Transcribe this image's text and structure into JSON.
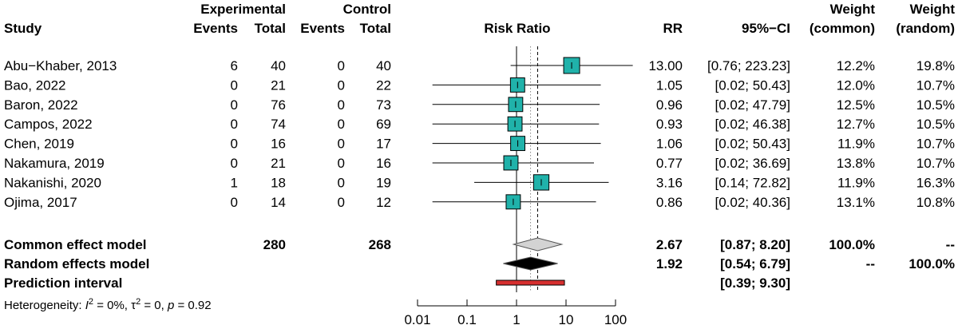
{
  "chart_data": {
    "type": "forest",
    "title": "Risk Ratio",
    "measure": "RR",
    "headers": {
      "study": "Study",
      "experimental": "Experimental",
      "control": "Control",
      "events": "Events",
      "total": "Total",
      "plot_title": "Risk Ratio",
      "rr": "RR",
      "ci": "95%−CI",
      "weight": "Weight",
      "weight_common": "(common)",
      "weight_random": "(random)"
    },
    "studies": [
      {
        "name": "Abu−Khaber, 2013",
        "e_events": "6",
        "e_total": "40",
        "c_events": "0",
        "c_total": "40",
        "rr": 13.0,
        "lower": 0.76,
        "upper": 223.23,
        "rr_text": "13.00",
        "ci_text": "[0.76; 223.23]",
        "w_common": "12.2%",
        "w_random": "19.8%"
      },
      {
        "name": "Bao, 2022",
        "e_events": "0",
        "e_total": "21",
        "c_events": "0",
        "c_total": "22",
        "rr": 1.05,
        "lower": 0.02,
        "upper": 50.43,
        "rr_text": "1.05",
        "ci_text": "[0.02;  50.43]",
        "w_common": "12.0%",
        "w_random": "10.7%"
      },
      {
        "name": "Baron, 2022",
        "e_events": "0",
        "e_total": "76",
        "c_events": "0",
        "c_total": "73",
        "rr": 0.96,
        "lower": 0.02,
        "upper": 47.79,
        "rr_text": "0.96",
        "ci_text": "[0.02;  47.79]",
        "w_common": "12.5%",
        "w_random": "10.5%"
      },
      {
        "name": "Campos, 2022",
        "e_events": "0",
        "e_total": "74",
        "c_events": "0",
        "c_total": "69",
        "rr": 0.93,
        "lower": 0.02,
        "upper": 46.38,
        "rr_text": "0.93",
        "ci_text": "[0.02;  46.38]",
        "w_common": "12.7%",
        "w_random": "10.5%"
      },
      {
        "name": "Chen, 2019",
        "e_events": "0",
        "e_total": "16",
        "c_events": "0",
        "c_total": "17",
        "rr": 1.06,
        "lower": 0.02,
        "upper": 50.43,
        "rr_text": "1.06",
        "ci_text": "[0.02;  50.43]",
        "w_common": "11.9%",
        "w_random": "10.7%"
      },
      {
        "name": "Nakamura, 2019",
        "e_events": "0",
        "e_total": "21",
        "c_events": "0",
        "c_total": "16",
        "rr": 0.77,
        "lower": 0.02,
        "upper": 36.69,
        "rr_text": "0.77",
        "ci_text": "[0.02;  36.69]",
        "w_common": "13.8%",
        "w_random": "10.7%"
      },
      {
        "name": "Nakanishi, 2020",
        "e_events": "1",
        "e_total": "18",
        "c_events": "0",
        "c_total": "19",
        "rr": 3.16,
        "lower": 0.14,
        "upper": 72.82,
        "rr_text": "3.16",
        "ci_text": "[0.14;  72.82]",
        "w_common": "11.9%",
        "w_random": "16.3%"
      },
      {
        "name": "Ojima, 2017",
        "e_events": "0",
        "e_total": "14",
        "c_events": "0",
        "c_total": "12",
        "rr": 0.86,
        "lower": 0.02,
        "upper": 40.36,
        "rr_text": "0.86",
        "ci_text": "[0.02;  40.36]",
        "w_common": "13.1%",
        "w_random": "10.8%"
      }
    ],
    "common": {
      "label": "Common effect model",
      "e_total": "280",
      "c_total": "268",
      "rr": 2.67,
      "lower": 0.87,
      "upper": 8.2,
      "rr_text": "2.67",
      "ci_text": "[0.87;  8.20]",
      "w_common": "100.0%",
      "w_random": "--"
    },
    "random": {
      "label": "Random effects model",
      "rr": 1.92,
      "lower": 0.54,
      "upper": 6.79,
      "rr_text": "1.92",
      "ci_text": "[0.54;  6.79]",
      "w_common": "--",
      "w_random": "100.0%"
    },
    "prediction": {
      "label": "Prediction interval",
      "lower": 0.39,
      "upper": 9.3,
      "ci_text": "[0.39;  9.30]"
    },
    "heterogeneity": {
      "prefix": "Heterogeneity: ",
      "i2_symbol": "I",
      "i2_value": " = 0%, ",
      "tau_symbol": "τ",
      "tau_value": " = 0, ",
      "p_symbol": "p",
      "p_value": " = 0.92"
    },
    "axis": {
      "scale": "log",
      "ticks": [
        0.01,
        0.1,
        1,
        10,
        100
      ],
      "tick_labels": [
        "0.01",
        "0.1",
        "1",
        "10",
        "100"
      ],
      "xlim": [
        0.01,
        100
      ],
      "reference": 1
    },
    "colors": {
      "square": "#20b2aa",
      "common_diamond": "#d3d3d3",
      "random_diamond": "#000000",
      "prediction": "#d62f2f"
    }
  }
}
